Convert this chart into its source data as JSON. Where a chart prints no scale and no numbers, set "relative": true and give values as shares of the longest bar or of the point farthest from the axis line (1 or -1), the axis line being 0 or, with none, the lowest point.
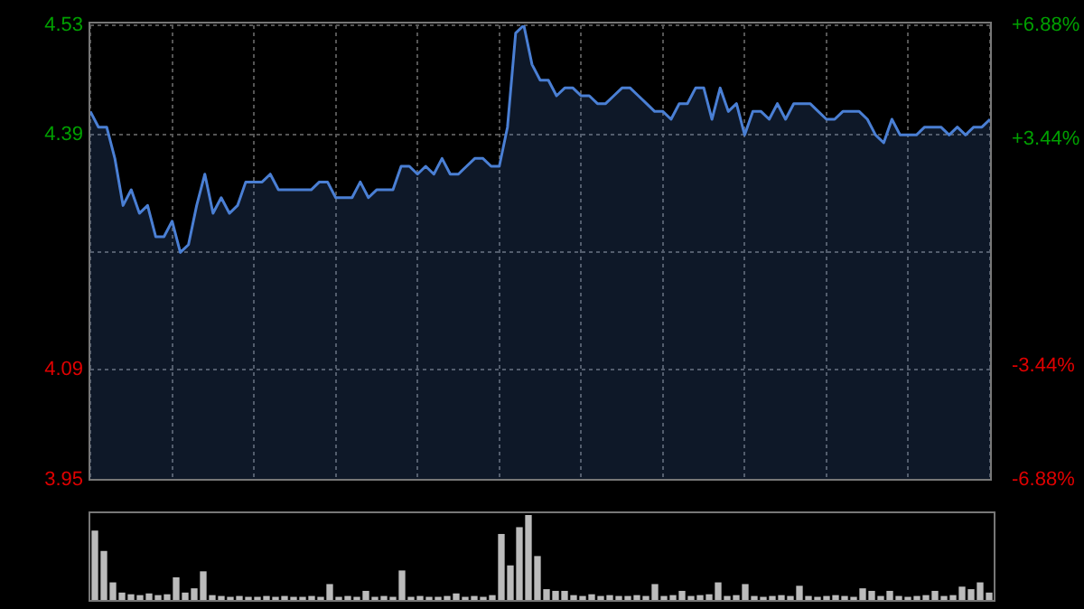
{
  "chart_data": [
    {
      "type": "area",
      "categories": [
        null,
        null,
        null,
        null,
        null,
        null,
        null,
        null,
        null,
        null,
        null,
        null,
        null,
        null,
        null,
        null,
        null,
        null,
        null,
        null,
        null,
        null,
        null,
        null,
        null,
        null,
        null,
        null,
        null,
        null,
        null,
        null,
        null,
        null,
        null,
        null,
        null,
        null,
        null,
        null,
        null,
        null,
        null,
        null,
        null,
        null,
        null,
        null,
        null,
        null,
        null,
        null,
        null,
        null,
        null,
        null,
        null,
        null,
        null,
        null,
        null,
        null,
        null,
        null,
        null,
        null,
        null,
        null,
        null,
        null,
        null,
        null,
        null,
        null,
        null,
        null,
        null,
        null,
        null,
        null,
        null,
        null,
        null,
        null,
        null,
        null,
        null,
        null,
        null,
        null,
        null,
        null,
        null,
        null,
        null,
        null,
        null,
        null,
        null,
        null,
        null,
        null,
        null,
        null,
        null,
        null,
        null,
        null,
        null,
        null,
        null
      ],
      "series": [
        {
          "color": "#4a7fd4",
          "values": [
            4.42,
            4.4,
            4.4,
            4.36,
            4.3,
            4.32,
            4.29,
            4.3,
            4.26,
            4.26,
            4.28,
            4.24,
            4.25,
            4.3,
            4.34,
            4.29,
            4.31,
            4.29,
            4.3,
            4.33,
            4.33,
            4.33,
            4.34,
            4.32,
            4.32,
            4.32,
            4.32,
            4.32,
            4.33,
            4.33,
            4.31,
            4.31,
            4.31,
            4.33,
            4.31,
            4.32,
            4.32,
            4.32,
            4.35,
            4.35,
            4.34,
            4.35,
            4.34,
            4.36,
            4.34,
            4.34,
            4.35,
            4.36,
            4.36,
            4.35,
            4.35,
            4.4,
            4.52,
            4.53,
            4.48,
            4.46,
            4.46,
            4.44,
            4.45,
            4.45,
            4.44,
            4.44,
            4.43,
            4.43,
            4.44,
            4.45,
            4.45,
            4.44,
            4.43,
            4.42,
            4.42,
            4.41,
            4.43,
            4.43,
            4.45,
            4.45,
            4.41,
            4.45,
            4.42,
            4.43,
            4.39,
            4.42,
            4.42,
            4.41,
            4.43,
            4.41,
            4.43,
            4.43,
            4.43,
            4.42,
            4.41,
            4.41,
            4.42,
            4.42,
            4.42,
            4.41,
            4.39,
            4.38,
            4.41,
            4.39,
            4.39,
            4.39,
            4.4,
            4.4,
            4.4,
            4.39,
            4.4,
            4.39,
            4.4,
            4.4,
            4.41
          ]
        }
      ],
      "ylim": [
        3.95,
        4.53
      ],
      "yticks": [
        3.95,
        4.09,
        {
          "value": 4.24,
          "label": null
        },
        4.39,
        4.53
      ],
      "y2lim": [
        -6.88,
        6.88
      ],
      "y2ticks": [
        {
          "value": -6.88,
          "label": "-6.88%"
        },
        {
          "value": -3.44,
          "label": "-3.44%"
        },
        {
          "value": 0,
          "label": null
        },
        {
          "value": 3.44,
          "label": "+3.44%"
        },
        {
          "value": 6.88,
          "label": "+6.88%"
        }
      ],
      "grid": true,
      "legend": false,
      "marker": "none",
      "tick_labels": "y"
    },
    {
      "type": "bar",
      "relative": true,
      "tick_labels": false,
      "legend": false,
      "color": "#bbbbbb",
      "categories": [
        null,
        null,
        null,
        null,
        null,
        null,
        null,
        null,
        null,
        null,
        null,
        null,
        null,
        null,
        null,
        null,
        null,
        null,
        null,
        null,
        null,
        null,
        null,
        null,
        null,
        null,
        null,
        null,
        null,
        null,
        null,
        null,
        null,
        null,
        null,
        null,
        null,
        null,
        null,
        null,
        null,
        null,
        null,
        null,
        null,
        null,
        null,
        null,
        null,
        null,
        null,
        null,
        null,
        null,
        null,
        null,
        null,
        null,
        null,
        null,
        null,
        null,
        null,
        null,
        null,
        null,
        null,
        null,
        null,
        null,
        null,
        null,
        null,
        null,
        null,
        null,
        null,
        null,
        null,
        null,
        null,
        null,
        null,
        null,
        null,
        null,
        null,
        null,
        null,
        null,
        null,
        null,
        null,
        null,
        null,
        null,
        null,
        null,
        null,
        null
      ],
      "values": [
        0.81,
        0.57,
        0.2,
        0.08,
        0.06,
        0.05,
        0.07,
        0.05,
        0.06,
        0.26,
        0.08,
        0.13,
        0.33,
        0.05,
        0.04,
        0.03,
        0.04,
        0.03,
        0.03,
        0.04,
        0.03,
        0.04,
        0.03,
        0.03,
        0.04,
        0.03,
        0.18,
        0.03,
        0.04,
        0.03,
        0.1,
        0.03,
        0.04,
        0.03,
        0.34,
        0.03,
        0.04,
        0.03,
        0.03,
        0.04,
        0.07,
        0.03,
        0.04,
        0.03,
        0.05,
        0.77,
        0.4,
        0.85,
        1,
        0.51,
        0.12,
        0.1,
        0.1,
        0.05,
        0.04,
        0.06,
        0.04,
        0.05,
        0.04,
        0.04,
        0.05,
        0.04,
        0.18,
        0.04,
        0.05,
        0.1,
        0.04,
        0.05,
        0.06,
        0.2,
        0.04,
        0.05,
        0.18,
        0.04,
        0.03,
        0.04,
        0.05,
        0.04,
        0.16,
        0.04,
        0.03,
        0.04,
        0.05,
        0.04,
        0.03,
        0.13,
        0.1,
        0.04,
        0.1,
        0.04,
        0.03,
        0.04,
        0.05,
        0.1,
        0.04,
        0.05,
        0.15,
        0.12,
        0.2,
        0.08
      ]
    }
  ]
}
